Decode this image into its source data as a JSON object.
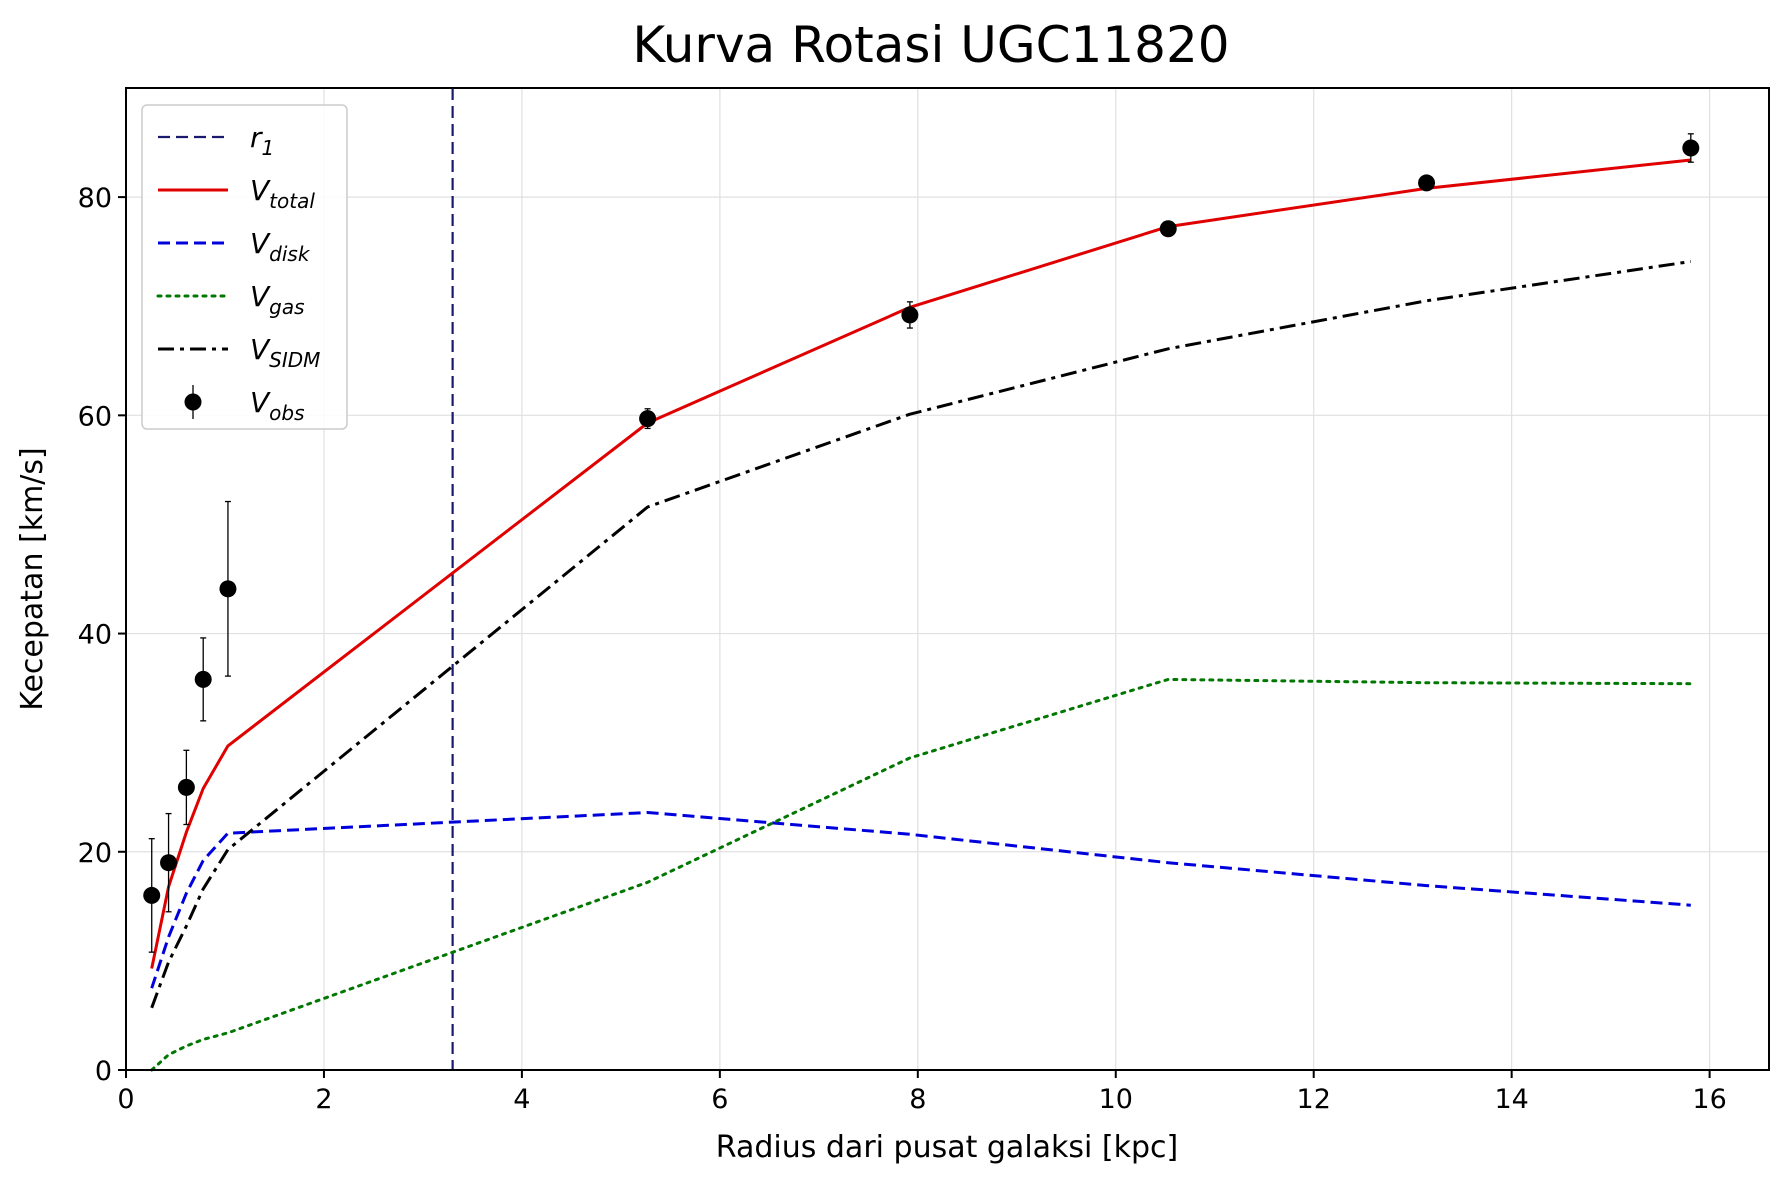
{
  "chart_data": {
    "type": "line",
    "title": "Kurva Rotasi UGC11820",
    "xlabel": "Radius dari pusat galaksi [kpc]",
    "ylabel": "Kecepatan [km/s]",
    "xlim": [
      0,
      16.6
    ],
    "ylim": [
      0,
      90
    ],
    "xticks": [
      0,
      2,
      4,
      6,
      8,
      10,
      12,
      14,
      16
    ],
    "yticks": [
      0,
      20,
      40,
      60,
      80
    ],
    "grid": true,
    "legend_position": "top-left",
    "vline": {
      "name_base": "r",
      "name_sub": "1",
      "x": 3.3,
      "color": "#191970",
      "style": "dashed"
    },
    "series": [
      {
        "name_base": "V",
        "name_sub": "total",
        "color": "#e00000",
        "style": "solid",
        "x": [
          0.26,
          0.43,
          0.61,
          0.78,
          1.03,
          5.27,
          7.92,
          10.53,
          13.14,
          15.81
        ],
        "y": [
          9.3,
          16.8,
          21.8,
          25.8,
          29.7,
          59.3,
          69.9,
          77.3,
          80.8,
          83.4
        ]
      },
      {
        "name_base": "V",
        "name_sub": "disk",
        "color": "#0000dd",
        "style": "dashed",
        "x": [
          0.26,
          0.43,
          0.61,
          0.78,
          1.03,
          5.27,
          7.92,
          10.53,
          13.14,
          15.81
        ],
        "y": [
          7.5,
          12.2,
          16.2,
          19.2,
          21.7,
          23.6,
          21.6,
          19.0,
          16.9,
          15.1
        ]
      },
      {
        "name_base": "V",
        "name_sub": "gas",
        "color": "#007700",
        "style": "dotted",
        "x": [
          0.26,
          0.43,
          0.61,
          0.78,
          1.03,
          5.27,
          7.92,
          10.53,
          13.14,
          15.81
        ],
        "y": [
          0.0,
          1.4,
          2.2,
          2.8,
          3.4,
          17.2,
          28.6,
          35.8,
          35.5,
          35.4
        ]
      },
      {
        "name_base": "V",
        "name_sub": "SIDM",
        "color": "#000000",
        "style": "dashdot",
        "x": [
          0.26,
          0.43,
          0.61,
          0.78,
          1.03,
          5.27,
          7.92,
          10.53,
          13.14,
          15.81
        ],
        "y": [
          5.7,
          9.9,
          13.2,
          16.6,
          20.2,
          51.6,
          60.1,
          66.1,
          70.5,
          74.1
        ]
      }
    ],
    "observed": {
      "name_base": "V",
      "name_sub": "obs",
      "color": "#000000",
      "x": [
        0.26,
        0.43,
        0.61,
        0.78,
        1.03,
        5.27,
        7.92,
        10.53,
        13.14,
        15.81
      ],
      "y": [
        16.0,
        19.0,
        25.9,
        35.8,
        44.1,
        59.7,
        69.2,
        77.1,
        81.3,
        84.5
      ],
      "err": [
        5.2,
        4.5,
        3.4,
        3.8,
        8.0,
        0.9,
        1.2,
        0.6,
        0.6,
        1.3
      ]
    }
  }
}
